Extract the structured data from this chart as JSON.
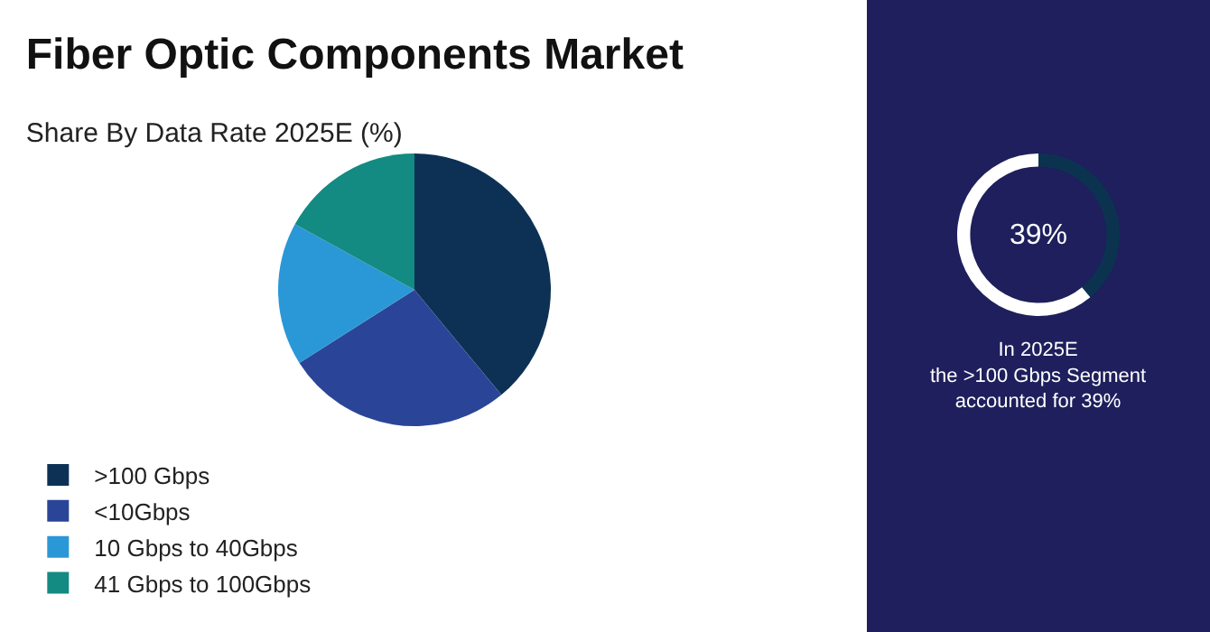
{
  "chart_data": [
    {
      "type": "pie",
      "title": "Fiber Optic Components Market",
      "subtitle": "Share By Data Rate 2025E (%)",
      "categories": [
        ">100 Gbps",
        "<10Gbps",
        "10 Gbps to 40Gbps",
        "41 Gbps to 100Gbps"
      ],
      "values": [
        39,
        27,
        17,
        17
      ],
      "colors": [
        "#0d3154",
        "#2a4598",
        "#2a98d6",
        "#138a82"
      ],
      "legend": "bottom"
    },
    {
      "type": "donut",
      "categories": [
        null,
        null
      ],
      "values": [
        39,
        61
      ],
      "colors": [
        "#0b3350",
        "#ffffff"
      ],
      "annotations": [
        "39%",
        "In 2025E\nthe >100 Gbps Segment\naccounted for 39%"
      ]
    }
  ]
}
